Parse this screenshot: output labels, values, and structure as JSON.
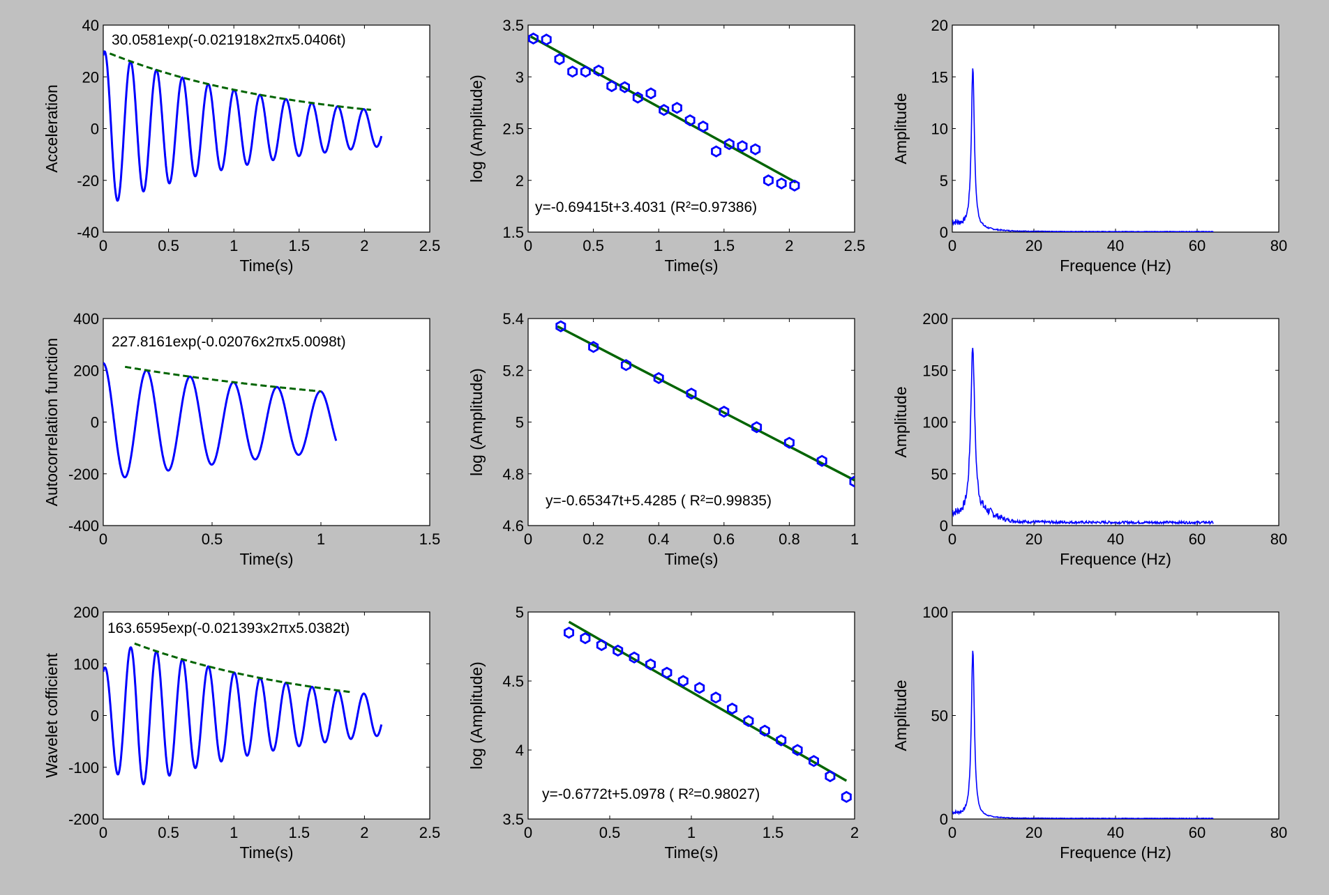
{
  "figure": {
    "background": "#c0c0c0",
    "signal_color": "#0000ff",
    "fit_color": "#006400"
  },
  "chart_data": [
    {
      "id": "acc-time",
      "type": "line",
      "xlabel": "Time(s)",
      "ylabel": "Acceleration",
      "xlim": [
        0,
        2.5
      ],
      "ylim": [
        -40,
        40
      ],
      "xticks": [
        "0",
        "0.5",
        "1",
        "1.5",
        "2",
        "2.5"
      ],
      "yticks": [
        "-40",
        "-20",
        "0",
        "20",
        "40"
      ],
      "annotation": "30.0581exp(-0.021918x2πx5.0406t)",
      "series": [
        {
          "name": "signal",
          "kind": "damped-sine",
          "amplitude": 30.0581,
          "zeta": 0.021918,
          "freq": 5.0406,
          "t_start": 0,
          "t_end": 2.13,
          "phase_deg": -70
        },
        {
          "name": "envelope",
          "kind": "envelope",
          "amplitude": 30.0581,
          "zeta": 0.021918,
          "freq": 5.0406,
          "t_start": 0.05,
          "t_end": 2.05
        }
      ]
    },
    {
      "id": "acc-log",
      "type": "scatter",
      "xlabel": "Time(s)",
      "ylabel": "log (Amplitude)",
      "xlim": [
        0,
        2.5
      ],
      "ylim": [
        1.5,
        3.5
      ],
      "xticks": [
        "0",
        "0.5",
        "1",
        "1.5",
        "2",
        "2.5"
      ],
      "yticks": [
        "1.5",
        "2",
        "2.5",
        "3",
        "3.5"
      ],
      "annotation": "y=-0.69415t+3.4031  (R²=0.97386)",
      "fit": {
        "slope": -0.69415,
        "intercept": 3.4031,
        "x_start": 0.02,
        "x_end": 2.05
      },
      "points": {
        "x": [
          0.04,
          0.14,
          0.24,
          0.34,
          0.44,
          0.54,
          0.64,
          0.74,
          0.84,
          0.94,
          1.04,
          1.14,
          1.24,
          1.34,
          1.44,
          1.54,
          1.64,
          1.74,
          1.84,
          1.94,
          2.04
        ],
        "y": [
          3.37,
          3.36,
          3.17,
          3.05,
          3.05,
          3.06,
          2.91,
          2.9,
          2.8,
          2.84,
          2.68,
          2.7,
          2.58,
          2.52,
          2.28,
          2.35,
          2.33,
          2.3,
          2.0,
          1.97,
          1.95
        ]
      }
    },
    {
      "id": "acc-fft",
      "type": "line",
      "xlabel": "Frequence (Hz)",
      "ylabel": "Amplitude",
      "xlim": [
        0,
        80
      ],
      "ylim": [
        0,
        20
      ],
      "xticks": [
        "0",
        "20",
        "40",
        "60",
        "80"
      ],
      "yticks": [
        "0",
        "5",
        "10",
        "15",
        "20"
      ],
      "series": [
        {
          "name": "spectrum",
          "kind": "spectrum",
          "peak_freq": 5.04,
          "peak_amp": 15.6,
          "width": 0.45,
          "floor": 0.9,
          "floor_decay": 5,
          "tail": 0.05,
          "tail2": 0,
          "f_end": 64
        }
      ]
    },
    {
      "id": "auto-time",
      "type": "line",
      "xlabel": "Time(s)",
      "ylabel": "Autocorrelation function",
      "xlim": [
        0,
        1.5
      ],
      "ylim": [
        -400,
        400
      ],
      "xticks": [
        "0",
        "0.5",
        "1",
        "1.5"
      ],
      "yticks": [
        "-400",
        "-200",
        "0",
        "200",
        "400"
      ],
      "annotation": "227.8161exp(-0.02076x2πx5.0098t)",
      "series": [
        {
          "name": "signal",
          "kind": "damped-cos",
          "amplitude": 227.8161,
          "zeta": 0.02076,
          "freq": 5.0098,
          "t_start": 0,
          "t_end": 1.07,
          "phase_deg": 0
        },
        {
          "name": "envelope",
          "kind": "envelope",
          "amplitude": 227.8161,
          "zeta": 0.02076,
          "freq": 5.0098,
          "t_start": 0.1,
          "t_end": 1.0
        }
      ]
    },
    {
      "id": "auto-log",
      "type": "scatter",
      "xlabel": "Time(s)",
      "ylabel": "log (Amplitude)",
      "xlim": [
        0,
        1
      ],
      "ylim": [
        4.6,
        5.4
      ],
      "xticks": [
        "0",
        "0.2",
        "0.4",
        "0.6",
        "0.8",
        "1"
      ],
      "yticks": [
        "4.6",
        "4.8",
        "5",
        "5.2",
        "5.4"
      ],
      "annotation": "y=-0.65347t+5.4285 ( R²=0.99835)",
      "fit": {
        "slope": -0.65347,
        "intercept": 5.4285,
        "x_start": 0.09,
        "x_end": 1.0
      },
      "points": {
        "x": [
          0.1,
          0.2,
          0.3,
          0.4,
          0.5,
          0.6,
          0.7,
          0.8,
          0.9,
          1.0
        ],
        "y": [
          5.37,
          5.29,
          5.22,
          5.17,
          5.11,
          5.04,
          4.98,
          4.92,
          4.85,
          4.77
        ]
      }
    },
    {
      "id": "auto-fft",
      "type": "line",
      "xlabel": "Frequence (Hz)",
      "ylabel": "Amplitude",
      "xlim": [
        0,
        80
      ],
      "ylim": [
        0,
        200
      ],
      "xticks": [
        "0",
        "20",
        "40",
        "60",
        "80"
      ],
      "yticks": [
        "0",
        "50",
        "100",
        "150",
        "200"
      ],
      "series": [
        {
          "name": "spectrum",
          "kind": "spectrum",
          "peak_freq": 5.01,
          "peak_amp": 163,
          "width": 0.6,
          "floor": 8,
          "floor_decay": 6,
          "tail": 3,
          "tail2": 6,
          "f_end": 64
        }
      ]
    },
    {
      "id": "wave-time",
      "type": "line",
      "xlabel": "Time(s)",
      "ylabel": "Wavelet cofficient",
      "xlim": [
        0,
        2.5
      ],
      "ylim": [
        -200,
        200
      ],
      "xticks": [
        "0",
        "0.5",
        "1",
        "1.5",
        "2",
        "2.5"
      ],
      "yticks": [
        "-200",
        "-100",
        "0",
        "100",
        "200"
      ],
      "annotation": "163.6595exp(-0.021393x2πx5.0382t)",
      "series": [
        {
          "name": "signal",
          "kind": "damped-sine",
          "amplitude": 163.6595,
          "zeta": 0.021393,
          "freq": 5.0382,
          "t_start": 0,
          "t_end": 2.13,
          "phase_deg": -70,
          "ramp": 0.25
        },
        {
          "name": "envelope",
          "kind": "envelope",
          "amplitude": 163.6595,
          "zeta": 0.021393,
          "freq": 5.0382,
          "t_start": 0.24,
          "t_end": 1.9
        }
      ]
    },
    {
      "id": "wave-log",
      "type": "scatter",
      "xlabel": "Time(s)",
      "ylabel": "log (Amplitude)",
      "xlim": [
        0,
        2
      ],
      "ylim": [
        3.5,
        5
      ],
      "xticks": [
        "0",
        "0.5",
        "1",
        "1.5",
        "2"
      ],
      "yticks": [
        "3.5",
        "4",
        "4.5",
        "5"
      ],
      "annotation": "y=-0.6772t+5.0978  ( R²=0.98027)",
      "fit": {
        "slope": -0.6772,
        "intercept": 5.0978,
        "x_start": 0.25,
        "x_end": 1.95
      },
      "points": {
        "x": [
          0.25,
          0.35,
          0.45,
          0.55,
          0.65,
          0.75,
          0.85,
          0.95,
          1.05,
          1.15,
          1.25,
          1.35,
          1.45,
          1.55,
          1.65,
          1.75,
          1.85,
          1.95
        ],
        "y": [
          4.85,
          4.81,
          4.76,
          4.72,
          4.67,
          4.62,
          4.56,
          4.5,
          4.45,
          4.38,
          4.3,
          4.21,
          4.14,
          4.07,
          4.0,
          3.92,
          3.81,
          3.66
        ]
      }
    },
    {
      "id": "wave-fft",
      "type": "line",
      "xlabel": "Frequence (Hz)",
      "ylabel": "Amplitude",
      "xlim": [
        0,
        80
      ],
      "ylim": [
        0,
        100
      ],
      "xticks": [
        "0",
        "20",
        "40",
        "60",
        "80"
      ],
      "yticks": [
        "0",
        "50",
        "100"
      ],
      "series": [
        {
          "name": "spectrum",
          "kind": "spectrum",
          "peak_freq": 5.04,
          "peak_amp": 81,
          "width": 0.45,
          "floor": 2.5,
          "floor_decay": 4,
          "tail": 0.3,
          "tail2": 0,
          "f_end": 64
        }
      ]
    }
  ]
}
